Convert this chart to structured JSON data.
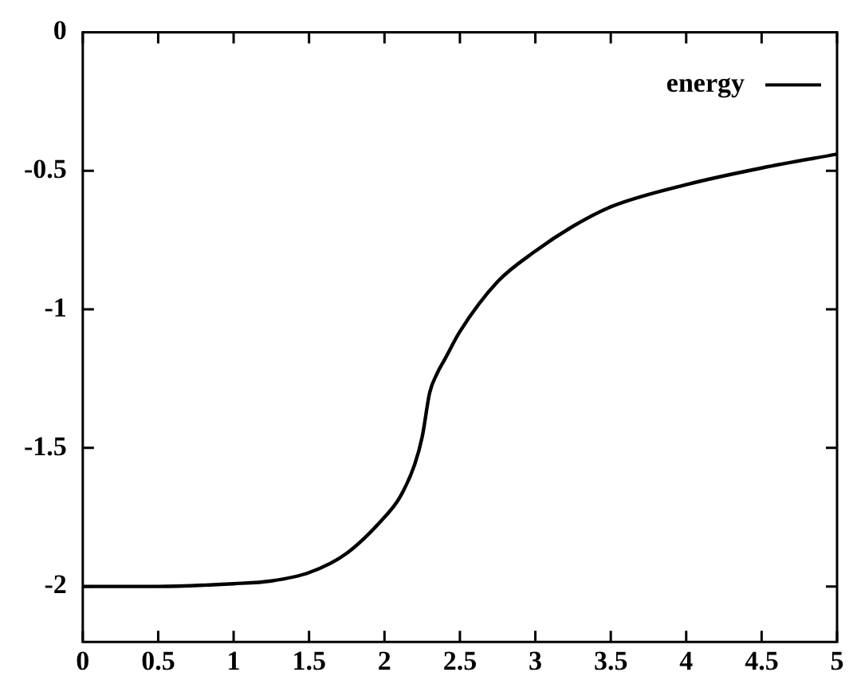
{
  "chart_data": {
    "type": "line",
    "x": [
      0,
      0.5,
      1,
      1.25,
      1.5,
      1.75,
      2,
      2.1,
      2.2,
      2.25,
      2.3,
      2.35,
      2.4,
      2.5,
      2.75,
      3,
      3.25,
      3.5,
      4,
      4.5,
      5
    ],
    "series": [
      {
        "name": "energy",
        "color": "#000000",
        "values": [
          -2,
          -2,
          -1.99,
          -1.98,
          -1.95,
          -1.88,
          -1.75,
          -1.68,
          -1.56,
          -1.46,
          -1.3,
          -1.23,
          -1.18,
          -1.08,
          -0.9,
          -0.79,
          -0.7,
          -0.63,
          -0.55,
          -0.49,
          -0.44
        ]
      }
    ],
    "xlim": [
      0,
      5
    ],
    "xticks": [
      0,
      0.5,
      1,
      1.5,
      2,
      2.5,
      3,
      3.5,
      4,
      4.5,
      5
    ],
    "ylim": [
      -2.2,
      0
    ],
    "yticks": [
      -2,
      -1.5,
      -1,
      -0.5,
      0
    ],
    "grid": false,
    "legend": "top right",
    "marker": "none",
    "line_style": "solid"
  }
}
